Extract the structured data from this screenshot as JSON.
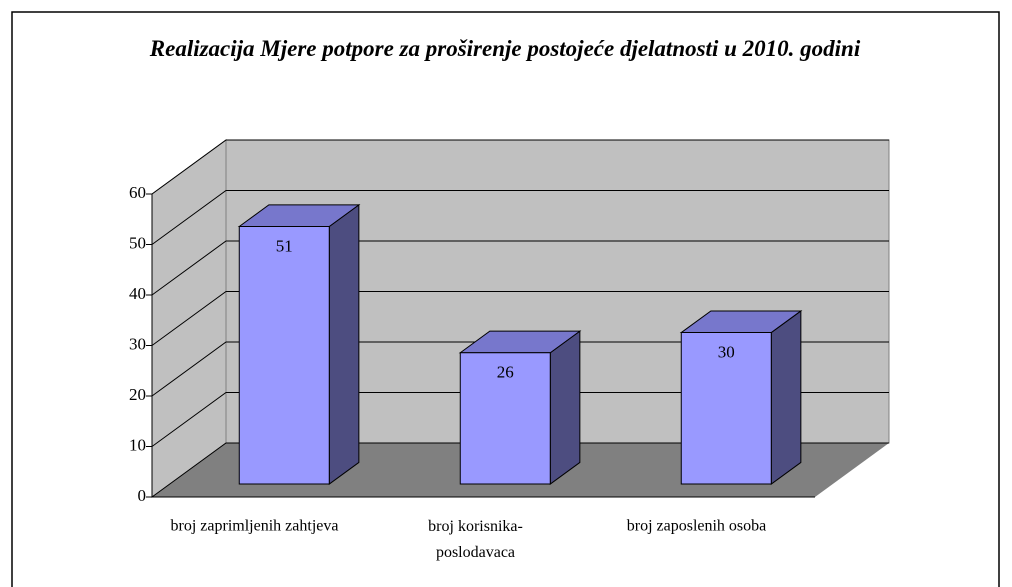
{
  "chart_data": {
    "type": "bar3d",
    "title": "Realizacija Mjere potpore za proširenje postojeće djelatnosti u 2010. godini",
    "categories": [
      "broj zaprimljenih zahtjeva",
      "broj korisnika-poslodavaca",
      "broj zaposlenih osoba"
    ],
    "values": [
      51,
      26,
      30
    ],
    "color": "#9999ff",
    "ylim": [
      0,
      60
    ],
    "yticks": [
      0,
      10,
      20,
      30,
      40,
      50,
      60
    ],
    "grid": true
  }
}
